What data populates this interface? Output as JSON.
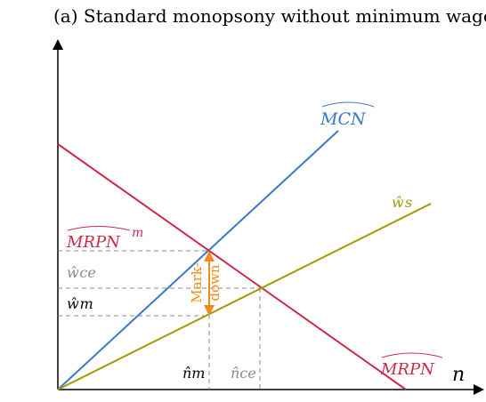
{
  "title": "(a) Standard monopsony without minimum wage",
  "labels": {
    "mcn": "MCN",
    "ws": "ŵs",
    "mrpn_m": "MRPN",
    "mrpn_m_sup": "m",
    "wce": "ŵce",
    "wm": "ŵm",
    "markdown_line1": "Mark-",
    "markdown_line2": "down",
    "nm": "n̂m",
    "nce": "n̂ce",
    "mrpn": "MRPN",
    "n_axis": "n"
  },
  "colors": {
    "mcn": "#3a78c9",
    "mrpn": "#cc2a4a",
    "ws": "#a39a00",
    "markdown": "#f08a1c",
    "guide": "#888888",
    "wce_text": "#8a8a8a"
  }
}
